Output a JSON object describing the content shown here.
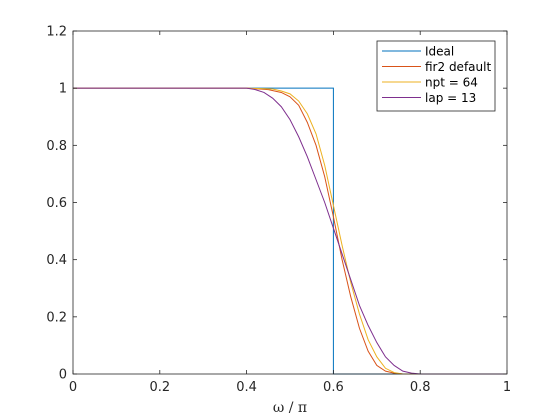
{
  "chart_data": {
    "type": "line",
    "xlabel": "ω / π",
    "ylabel": "",
    "xlim": [
      0,
      1
    ],
    "ylim": [
      0,
      1.2
    ],
    "xticks": [
      0,
      0.2,
      0.4,
      0.6,
      0.8,
      1
    ],
    "yticks": [
      0,
      0.2,
      0.4,
      0.6,
      0.8,
      1,
      1.2
    ],
    "xtick_labels": [
      "0",
      "0.2",
      "0.4",
      "0.6",
      "0.8",
      "1"
    ],
    "ytick_labels": [
      "0",
      "0.2",
      "0.4",
      "0.6",
      "0.8",
      "1",
      "1.2"
    ],
    "grid": false,
    "legend_position": "top-right",
    "series": [
      {
        "name": "Ideal",
        "color": "#0072BD",
        "x": [
          0,
          0.6,
          0.6,
          1
        ],
        "y": [
          1,
          1,
          0,
          0
        ]
      },
      {
        "name": "fir2 default",
        "color": "#D95319",
        "x": [
          0,
          0.1,
          0.2,
          0.3,
          0.4,
          0.45,
          0.48,
          0.5,
          0.52,
          0.54,
          0.56,
          0.58,
          0.6,
          0.62,
          0.64,
          0.66,
          0.68,
          0.7,
          0.72,
          0.74,
          0.76,
          0.8,
          0.9,
          1
        ],
        "y": [
          1,
          1,
          1,
          1,
          1,
          0.995,
          0.985,
          0.97,
          0.94,
          0.88,
          0.8,
          0.69,
          0.55,
          0.4,
          0.27,
          0.16,
          0.08,
          0.03,
          0.01,
          0.003,
          0,
          0,
          0,
          0
        ]
      },
      {
        "name": "npt = 64",
        "color": "#EDB120",
        "x": [
          0,
          0.1,
          0.2,
          0.3,
          0.4,
          0.46,
          0.48,
          0.5,
          0.52,
          0.54,
          0.56,
          0.58,
          0.6,
          0.62,
          0.64,
          0.66,
          0.68,
          0.7,
          0.72,
          0.74,
          0.76,
          0.8,
          0.9,
          1
        ],
        "y": [
          1,
          1,
          1,
          1,
          1,
          0.997,
          0.99,
          0.98,
          0.955,
          0.91,
          0.84,
          0.73,
          0.59,
          0.45,
          0.32,
          0.21,
          0.12,
          0.06,
          0.02,
          0.005,
          0,
          0,
          0,
          0
        ]
      },
      {
        "name": "lap = 13",
        "color": "#7E2F8E",
        "x": [
          0,
          0.1,
          0.2,
          0.3,
          0.4,
          0.42,
          0.44,
          0.46,
          0.48,
          0.5,
          0.52,
          0.54,
          0.56,
          0.58,
          0.6,
          0.62,
          0.64,
          0.66,
          0.68,
          0.7,
          0.72,
          0.74,
          0.76,
          0.78,
          0.8,
          0.9,
          1
        ],
        "y": [
          1,
          1,
          1,
          1,
          1,
          0.995,
          0.985,
          0.965,
          0.935,
          0.89,
          0.83,
          0.76,
          0.68,
          0.6,
          0.51,
          0.42,
          0.33,
          0.24,
          0.17,
          0.11,
          0.06,
          0.03,
          0.01,
          0.003,
          0,
          0,
          0
        ]
      }
    ]
  }
}
